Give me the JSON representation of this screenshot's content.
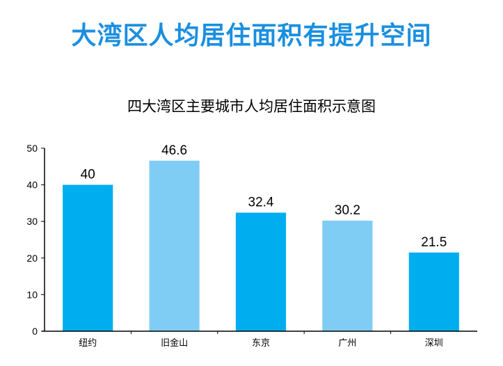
{
  "header": {
    "main_title": "大湾区人均居住面积有提升空间"
  },
  "colors": {
    "title": "#1a8fe0",
    "bar_dark": "#00aeef",
    "bar_light": "#7fcdf5",
    "axis": "#000000"
  },
  "chart_data": {
    "type": "bar",
    "title": "四大湾区主要城市人均居住面积示意图",
    "xlabel": "",
    "ylabel": "",
    "categories": [
      "纽约",
      "旧金山",
      "东京",
      "广州",
      "深圳"
    ],
    "values": [
      40,
      46.6,
      32.4,
      30.2,
      21.5
    ],
    "value_labels": [
      "40",
      "46.6",
      "32.4",
      "30.2",
      "21.5"
    ],
    "bar_colors": [
      "#00aeef",
      "#7fcdf5",
      "#00aeef",
      "#7fcdf5",
      "#00aeef"
    ],
    "ylim": [
      0,
      50
    ],
    "yticks": [
      0,
      10,
      20,
      30,
      40,
      50
    ],
    "grid": false,
    "legend": "none"
  }
}
